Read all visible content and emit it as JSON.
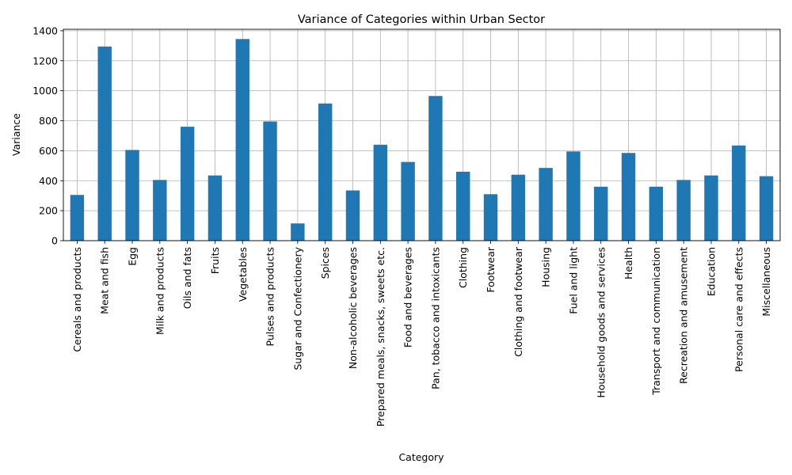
{
  "chart_data": {
    "type": "bar",
    "title": "Variance of Categories within Urban Sector",
    "xlabel": "Category",
    "ylabel": "Variance",
    "ylim": [
      0,
      1410
    ],
    "yticks": [
      0,
      200,
      400,
      600,
      800,
      1000,
      1200,
      1400
    ],
    "grid": true,
    "bar_color": "#1f77b4",
    "categories": [
      "Cereals and products",
      "Meat and fish",
      "Egg",
      "Milk and products",
      "Oils and fats",
      "Fruits",
      "Vegetables",
      "Pulses and products",
      "Sugar and Confectionery",
      "Spices",
      "Non-alcoholic beverages",
      "Prepared meals, snacks, sweets etc.",
      "Food and beverages",
      "Pan, tobacco and intoxicants",
      "Clothing",
      "Footwear",
      "Clothing and footwear",
      "Housing",
      "Fuel and light",
      "Household goods and services",
      "Health",
      "Transport and communication",
      "Recreation and amusement",
      "Education",
      "Personal care and effects",
      "Miscellaneous"
    ],
    "values": [
      305,
      1295,
      605,
      405,
      760,
      435,
      1345,
      795,
      115,
      915,
      335,
      640,
      525,
      965,
      460,
      310,
      440,
      485,
      595,
      360,
      585,
      360,
      405,
      435,
      635,
      430
    ]
  }
}
